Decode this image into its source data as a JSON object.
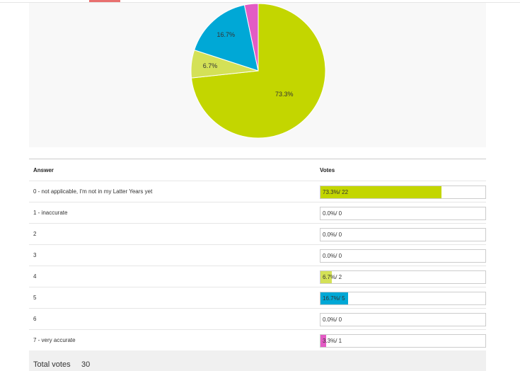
{
  "chart_data": {
    "type": "pie",
    "slices": [
      {
        "answer": "0 - not applicable, I'm not in my Latter Years yet",
        "votes": 22,
        "percent": 73.3,
        "label": "73.3%",
        "color": "#c3d600"
      },
      {
        "answer": "4",
        "votes": 2,
        "percent": 6.7,
        "label": "6.7%",
        "color": "#d4e157"
      },
      {
        "answer": "5",
        "votes": 5,
        "percent": 16.7,
        "label": "16.7%",
        "color": "#00a8d6"
      },
      {
        "answer": "7 - very accurate",
        "votes": 1,
        "percent": 3.3,
        "label": "",
        "color": "#e35bc4"
      }
    ]
  },
  "table": {
    "answer_header": "Answer",
    "votes_header": "Votes",
    "rows": [
      {
        "answer": "0 - not applicable, I'm not in my Latter Years yet",
        "percent": 73.3,
        "votes_label": "73.3%/ 22",
        "color": "#c3d600"
      },
      {
        "answer": "1 - inaccurate",
        "percent": 0,
        "votes_label": "0.0%/ 0",
        "color": "#c3d600"
      },
      {
        "answer": "2",
        "percent": 0,
        "votes_label": "0.0%/ 0",
        "color": "#c3d600"
      },
      {
        "answer": "3",
        "percent": 0,
        "votes_label": "0.0%/ 0",
        "color": "#c3d600"
      },
      {
        "answer": "4",
        "percent": 6.7,
        "votes_label": "6.7%/ 2",
        "color": "#d4e157"
      },
      {
        "answer": "5",
        "percent": 16.7,
        "votes_label": "16.7%/ 5",
        "color": "#00a8d6"
      },
      {
        "answer": "6",
        "percent": 0,
        "votes_label": "0.0%/ 0",
        "color": "#c3d600"
      },
      {
        "answer": "7 - very accurate",
        "percent": 3.3,
        "votes_label": "3.3%/ 1",
        "color": "#e35bc4"
      }
    ]
  },
  "footer": {
    "total_label": "Total votes",
    "total_value": "30"
  }
}
